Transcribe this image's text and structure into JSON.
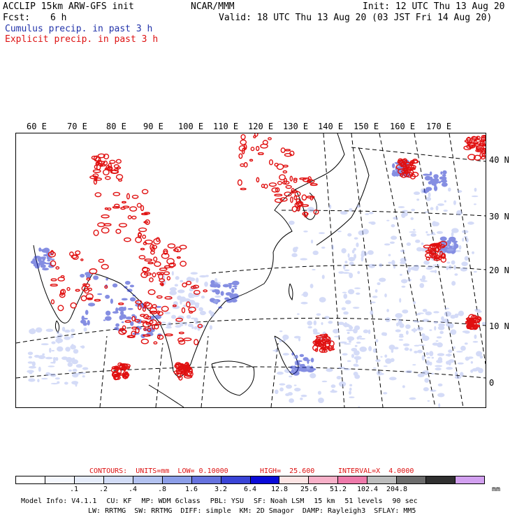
{
  "header": {
    "model": "ACCLIP 15km ARW-GFS init",
    "org": "NCAR/MMM",
    "init": "Init: 12 UTC Thu 13 Aug 20",
    "fcst_label": "Fcst:",
    "fcst_value": "6 h",
    "valid": "Valid: 18 UTC Thu 13 Aug 20 (03 JST Fri 14 Aug 20)",
    "cumulus": "Cumulus precip. in past 3 h",
    "explicit": "Explicit precip. in past 3 h"
  },
  "map": {
    "lon_labels": [
      "60 E",
      "70 E",
      "80 E",
      "90 E",
      "100 E",
      "110 E",
      "120 E",
      "130 E",
      "140 E",
      "150 E",
      "160 E",
      "170 E"
    ],
    "lat_labels": [
      "40 N",
      "30 N",
      "20 N",
      "10 N",
      "0"
    ],
    "colors": {
      "cumulus": "#2233cc",
      "explicit": "#e01010",
      "coast": "#000000"
    }
  },
  "contours": {
    "units": "CONTOURS:  UNITS=mm  LOW= 0.10000",
    "high": "HIGH=  25.600",
    "interval": "INTERVAL=X  4.0000"
  },
  "colorbar": {
    "colors": [
      "#ffffff",
      "#f4f7fd",
      "#e6ecfa",
      "#d2dcf6",
      "#b3c2f0",
      "#8c9ee8",
      "#6672de",
      "#3a44d6",
      "#0a0ad8",
      "#fce4e4",
      "#f7b0c8",
      "#ee7aaa",
      "#bcbcbc",
      "#6c6c6c",
      "#303030",
      "#d2a0f0"
    ],
    "labels": [
      ".1",
      ".2",
      ".4",
      ".8",
      "1.6",
      "3.2",
      "6.4",
      "12.8",
      "25.6",
      "51.2",
      "102.4",
      "204.8"
    ],
    "unit": "mm"
  },
  "footer": {
    "line1": [
      "Model Info: V4.1.1",
      "CU: KF",
      "MP: WDM 6class",
      "PBL: YSU",
      "SF: Noah LSM",
      "15 km",
      "51 levels",
      "90 sec"
    ],
    "line2": [
      "LW: RRTMG",
      "SW: RRTMG",
      "DIFF: simple",
      "KM: 2D Smagor",
      "DAMP: Rayleigh3",
      "SFLAY: MM5"
    ]
  }
}
